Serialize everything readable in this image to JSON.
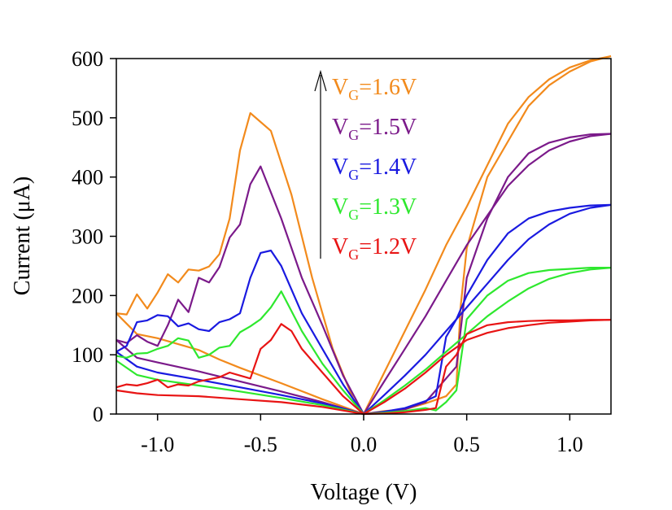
{
  "chart_data": {
    "type": "line",
    "xlabel": "Voltage (V)",
    "ylabel": "Current (μA)",
    "xlim": [
      -1.2,
      1.2
    ],
    "ylim": [
      0,
      600
    ],
    "x_ticks": [
      -1.0,
      -0.5,
      0.0,
      0.5,
      1.0
    ],
    "x_tick_labels": [
      "-1.0",
      "-0.5",
      "0.0",
      "0.5",
      "1.0"
    ],
    "y_ticks": [
      0,
      100,
      200,
      300,
      400,
      500,
      600
    ],
    "y_tick_labels": [
      "0",
      "100",
      "200",
      "300",
      "400",
      "500",
      "600"
    ],
    "grid": false,
    "legend_position": "top-center",
    "legend_arrow": "upward",
    "series": [
      {
        "name": "VG=1.6V",
        "label_main": "V",
        "label_sub": "G",
        "label_rest": "=1.6V",
        "color": "#f28a1c",
        "sweep_forward": [
          [
            -1.2,
            170
          ],
          [
            -1.15,
            168
          ],
          [
            -1.1,
            202
          ],
          [
            -1.05,
            178
          ],
          [
            -1.0,
            205
          ],
          [
            -0.95,
            236
          ],
          [
            -0.9,
            222
          ],
          [
            -0.85,
            244
          ],
          [
            -0.8,
            242
          ],
          [
            -0.75,
            249
          ],
          [
            -0.7,
            270
          ],
          [
            -0.65,
            330
          ],
          [
            -0.6,
            445
          ],
          [
            -0.55,
            508
          ],
          [
            -0.45,
            478
          ],
          [
            -0.35,
            370
          ],
          [
            -0.25,
            230
          ],
          [
            -0.15,
            110
          ],
          [
            -0.05,
            25
          ],
          [
            0.0,
            0
          ],
          [
            0.1,
            5
          ],
          [
            0.2,
            8
          ],
          [
            0.3,
            18
          ],
          [
            0.4,
            30
          ],
          [
            0.45,
            50
          ],
          [
            0.47,
            180
          ],
          [
            0.5,
            280
          ],
          [
            0.55,
            340
          ],
          [
            0.6,
            400
          ],
          [
            0.7,
            460
          ],
          [
            0.8,
            520
          ],
          [
            0.9,
            555
          ],
          [
            1.0,
            578
          ],
          [
            1.1,
            595
          ],
          [
            1.2,
            604
          ]
        ],
        "sweep_reverse": [
          [
            1.2,
            604
          ],
          [
            1.1,
            597
          ],
          [
            1.0,
            585
          ],
          [
            0.9,
            565
          ],
          [
            0.8,
            535
          ],
          [
            0.7,
            490
          ],
          [
            0.6,
            420
          ],
          [
            0.5,
            350
          ],
          [
            0.4,
            285
          ],
          [
            0.3,
            210
          ],
          [
            0.2,
            140
          ],
          [
            0.1,
            70
          ],
          [
            0.0,
            0
          ],
          [
            -0.2,
            25
          ],
          [
            -0.4,
            52
          ],
          [
            -0.6,
            78
          ],
          [
            -0.7,
            92
          ],
          [
            -0.8,
            108
          ],
          [
            -0.9,
            118
          ],
          [
            -1.0,
            128
          ],
          [
            -1.1,
            135
          ],
          [
            -1.2,
            170
          ]
        ]
      },
      {
        "name": "VG=1.5V",
        "label_main": "V",
        "label_sub": "G",
        "label_rest": "=1.5V",
        "color": "#7b1a8a",
        "sweep_forward": [
          [
            -1.2,
            125
          ],
          [
            -1.15,
            120
          ],
          [
            -1.1,
            133
          ],
          [
            -1.05,
            122
          ],
          [
            -1.0,
            115
          ],
          [
            -0.95,
            150
          ],
          [
            -0.9,
            193
          ],
          [
            -0.85,
            172
          ],
          [
            -0.8,
            230
          ],
          [
            -0.75,
            222
          ],
          [
            -0.7,
            248
          ],
          [
            -0.65,
            298
          ],
          [
            -0.6,
            320
          ],
          [
            -0.55,
            388
          ],
          [
            -0.5,
            418
          ],
          [
            -0.4,
            330
          ],
          [
            -0.3,
            230
          ],
          [
            -0.2,
            150
          ],
          [
            -0.1,
            65
          ],
          [
            0.0,
            0
          ],
          [
            0.1,
            3
          ],
          [
            0.2,
            8
          ],
          [
            0.3,
            20
          ],
          [
            0.35,
            40
          ],
          [
            0.4,
            60
          ],
          [
            0.45,
            80
          ],
          [
            0.5,
            230
          ],
          [
            0.55,
            280
          ],
          [
            0.6,
            330
          ],
          [
            0.7,
            400
          ],
          [
            0.8,
            440
          ],
          [
            0.9,
            458
          ],
          [
            1.0,
            467
          ],
          [
            1.1,
            472
          ],
          [
            1.2,
            473
          ]
        ],
        "sweep_reverse": [
          [
            1.2,
            473
          ],
          [
            1.1,
            469
          ],
          [
            1.0,
            460
          ],
          [
            0.9,
            445
          ],
          [
            0.8,
            420
          ],
          [
            0.7,
            385
          ],
          [
            0.6,
            335
          ],
          [
            0.5,
            285
          ],
          [
            0.4,
            225
          ],
          [
            0.3,
            165
          ],
          [
            0.2,
            110
          ],
          [
            0.1,
            55
          ],
          [
            0.0,
            0
          ],
          [
            -0.2,
            20
          ],
          [
            -0.4,
            38
          ],
          [
            -0.6,
            55
          ],
          [
            -0.8,
            72
          ],
          [
            -1.0,
            87
          ],
          [
            -1.1,
            95
          ],
          [
            -1.2,
            125
          ]
        ]
      },
      {
        "name": "VG=1.4V",
        "label_main": "V",
        "label_sub": "G",
        "label_rest": "=1.4V",
        "color": "#1a1ae0",
        "sweep_forward": [
          [
            -1.2,
            105
          ],
          [
            -1.15,
            115
          ],
          [
            -1.1,
            155
          ],
          [
            -1.05,
            158
          ],
          [
            -1.0,
            167
          ],
          [
            -0.95,
            165
          ],
          [
            -0.9,
            148
          ],
          [
            -0.85,
            153
          ],
          [
            -0.8,
            143
          ],
          [
            -0.75,
            140
          ],
          [
            -0.7,
            155
          ],
          [
            -0.65,
            160
          ],
          [
            -0.6,
            170
          ],
          [
            -0.55,
            230
          ],
          [
            -0.5,
            272
          ],
          [
            -0.45,
            276
          ],
          [
            -0.4,
            250
          ],
          [
            -0.3,
            170
          ],
          [
            -0.2,
            110
          ],
          [
            -0.1,
            50
          ],
          [
            0.0,
            0
          ],
          [
            0.1,
            4
          ],
          [
            0.2,
            10
          ],
          [
            0.3,
            22
          ],
          [
            0.35,
            30
          ],
          [
            0.4,
            130
          ],
          [
            0.45,
            160
          ],
          [
            0.5,
            200
          ],
          [
            0.6,
            260
          ],
          [
            0.7,
            305
          ],
          [
            0.8,
            330
          ],
          [
            0.9,
            342
          ],
          [
            1.0,
            348
          ],
          [
            1.1,
            352
          ],
          [
            1.2,
            353
          ]
        ],
        "sweep_reverse": [
          [
            1.2,
            353
          ],
          [
            1.1,
            348
          ],
          [
            1.0,
            338
          ],
          [
            0.9,
            320
          ],
          [
            0.8,
            295
          ],
          [
            0.7,
            260
          ],
          [
            0.6,
            220
          ],
          [
            0.5,
            180
          ],
          [
            0.4,
            140
          ],
          [
            0.3,
            100
          ],
          [
            0.2,
            65
          ],
          [
            0.1,
            32
          ],
          [
            0.0,
            0
          ],
          [
            -0.2,
            18
          ],
          [
            -0.4,
            32
          ],
          [
            -0.6,
            45
          ],
          [
            -0.8,
            58
          ],
          [
            -1.0,
            70
          ],
          [
            -1.1,
            80
          ],
          [
            -1.2,
            105
          ]
        ]
      },
      {
        "name": "VG=1.3V",
        "label_main": "V",
        "label_sub": "G",
        "label_rest": "=1.3V",
        "color": "#2ee82e",
        "sweep_forward": [
          [
            -1.2,
            98
          ],
          [
            -1.15,
            95
          ],
          [
            -1.1,
            102
          ],
          [
            -1.05,
            103
          ],
          [
            -1.0,
            110
          ],
          [
            -0.95,
            115
          ],
          [
            -0.9,
            128
          ],
          [
            -0.85,
            124
          ],
          [
            -0.8,
            95
          ],
          [
            -0.75,
            100
          ],
          [
            -0.7,
            112
          ],
          [
            -0.65,
            115
          ],
          [
            -0.6,
            138
          ],
          [
            -0.55,
            148
          ],
          [
            -0.5,
            160
          ],
          [
            -0.45,
            180
          ],
          [
            -0.4,
            207
          ],
          [
            -0.3,
            140
          ],
          [
            -0.2,
            85
          ],
          [
            -0.1,
            40
          ],
          [
            0.0,
            0
          ],
          [
            0.1,
            2
          ],
          [
            0.2,
            5
          ],
          [
            0.3,
            10
          ],
          [
            0.35,
            6
          ],
          [
            0.4,
            20
          ],
          [
            0.45,
            40
          ],
          [
            0.5,
            160
          ],
          [
            0.55,
            180
          ],
          [
            0.6,
            200
          ],
          [
            0.7,
            225
          ],
          [
            0.8,
            238
          ],
          [
            0.9,
            243
          ],
          [
            1.0,
            245
          ],
          [
            1.1,
            247
          ],
          [
            1.2,
            247
          ]
        ],
        "sweep_reverse": [
          [
            1.2,
            247
          ],
          [
            1.1,
            244
          ],
          [
            1.0,
            238
          ],
          [
            0.9,
            228
          ],
          [
            0.8,
            212
          ],
          [
            0.7,
            190
          ],
          [
            0.6,
            165
          ],
          [
            0.5,
            135
          ],
          [
            0.4,
            105
          ],
          [
            0.3,
            75
          ],
          [
            0.2,
            48
          ],
          [
            0.1,
            23
          ],
          [
            0.0,
            0
          ],
          [
            -0.2,
            15
          ],
          [
            -0.4,
            27
          ],
          [
            -0.6,
            38
          ],
          [
            -0.8,
            48
          ],
          [
            -1.0,
            58
          ],
          [
            -1.1,
            66
          ],
          [
            -1.2,
            90
          ]
        ]
      },
      {
        "name": "VG=1.2V",
        "label_main": "V",
        "label_sub": "G",
        "label_rest": "=1.2V",
        "color": "#e81414",
        "sweep_forward": [
          [
            -1.2,
            45
          ],
          [
            -1.15,
            50
          ],
          [
            -1.1,
            48
          ],
          [
            -1.05,
            52
          ],
          [
            -1.0,
            58
          ],
          [
            -0.95,
            45
          ],
          [
            -0.9,
            50
          ],
          [
            -0.85,
            48
          ],
          [
            -0.8,
            55
          ],
          [
            -0.7,
            62
          ],
          [
            -0.65,
            70
          ],
          [
            -0.6,
            65
          ],
          [
            -0.55,
            60
          ],
          [
            -0.5,
            110
          ],
          [
            -0.45,
            125
          ],
          [
            -0.4,
            152
          ],
          [
            -0.35,
            140
          ],
          [
            -0.3,
            110
          ],
          [
            -0.2,
            70
          ],
          [
            -0.1,
            30
          ],
          [
            0.0,
            0
          ],
          [
            0.1,
            1
          ],
          [
            0.2,
            3
          ],
          [
            0.3,
            7
          ],
          [
            0.35,
            10
          ],
          [
            0.4,
            80
          ],
          [
            0.45,
            100
          ],
          [
            0.5,
            135
          ],
          [
            0.6,
            150
          ],
          [
            0.7,
            155
          ],
          [
            0.8,
            157
          ],
          [
            0.9,
            158
          ],
          [
            1.0,
            158
          ],
          [
            1.1,
            159
          ],
          [
            1.2,
            159
          ]
        ],
        "sweep_reverse": [
          [
            1.2,
            159
          ],
          [
            1.1,
            158
          ],
          [
            1.0,
            156
          ],
          [
            0.9,
            154
          ],
          [
            0.8,
            150
          ],
          [
            0.7,
            145
          ],
          [
            0.6,
            137
          ],
          [
            0.5,
            125
          ],
          [
            0.4,
            100
          ],
          [
            0.3,
            70
          ],
          [
            0.2,
            43
          ],
          [
            0.1,
            20
          ],
          [
            0.0,
            0
          ],
          [
            -0.2,
            12
          ],
          [
            -0.4,
            20
          ],
          [
            -0.6,
            25
          ],
          [
            -0.8,
            30
          ],
          [
            -1.0,
            32
          ],
          [
            -1.1,
            35
          ],
          [
            -1.2,
            40
          ]
        ]
      }
    ]
  }
}
